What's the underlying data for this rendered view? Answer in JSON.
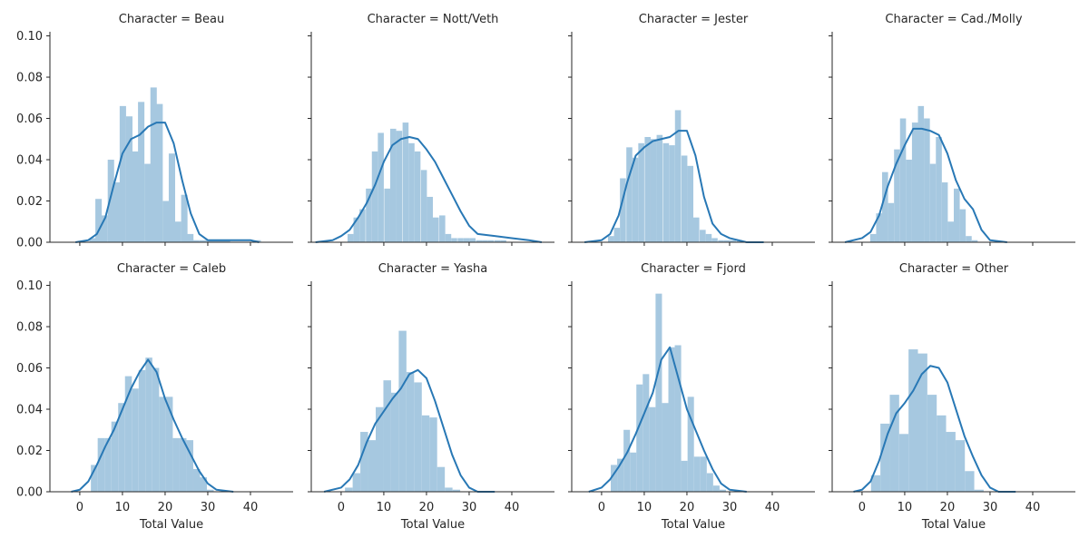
{
  "figure": {
    "xlabel": "Total Value",
    "x_ticks": [
      0,
      10,
      20,
      30,
      40
    ],
    "y_ticks": [
      "0.00",
      "0.02",
      "0.04",
      "0.06",
      "0.08",
      "0.10"
    ],
    "bar_color": "#a6c8e0",
    "kde_color": "#2878b5",
    "axis_color": "#262626"
  },
  "chart_data": [
    {
      "type": "histogram",
      "title": "Character = Beau",
      "xlim": [
        -7,
        50
      ],
      "ylim": [
        0,
        0.102
      ],
      "hist": {
        "x": [
          1.5,
          3.0,
          4.4,
          5.8,
          7.3,
          8.7,
          10.1,
          11.6,
          13.0,
          14.4,
          15.9,
          17.3,
          18.7,
          20.2,
          21.6,
          23.0,
          24.5,
          25.9,
          27.3,
          28.8,
          30.2,
          31.6,
          33.1,
          34.5,
          35.9,
          37.4,
          38.8,
          40.2,
          41.7
        ],
        "density": [
          0.0,
          0.002,
          0.021,
          0.013,
          0.04,
          0.029,
          0.066,
          0.061,
          0.044,
          0.068,
          0.038,
          0.075,
          0.067,
          0.02,
          0.043,
          0.01,
          0.023,
          0.004,
          0.001,
          0.001,
          0.001,
          0.001,
          0.001,
          0.001,
          0.0,
          0.0,
          0.0,
          0.0,
          0.001
        ]
      },
      "kde": {
        "x": [
          -1,
          2,
          4,
          6,
          8,
          10,
          12,
          14,
          16,
          18,
          20,
          22,
          24,
          26,
          28,
          30,
          32,
          36,
          40,
          42
        ],
        "y": [
          0.0,
          0.001,
          0.004,
          0.012,
          0.028,
          0.043,
          0.05,
          0.052,
          0.056,
          0.058,
          0.058,
          0.048,
          0.03,
          0.014,
          0.004,
          0.001,
          0.001,
          0.001,
          0.001,
          0.0
        ]
      }
    },
    {
      "type": "histogram",
      "title": "Character = Nott/Veth",
      "xlim": [
        -7,
        50
      ],
      "ylim": [
        0,
        0.102
      ],
      "hist": {
        "x": [
          2.2,
          3.6,
          5.0,
          6.5,
          7.9,
          9.3,
          10.8,
          12.2,
          13.6,
          15.1,
          16.5,
          17.9,
          19.4,
          20.8,
          22.2,
          23.7,
          25.1,
          26.5,
          28.0,
          29.4,
          30.8,
          32.3,
          33.7,
          35.1,
          36.6,
          38.0,
          39.4,
          40.9,
          42.3,
          43.7,
          45.2,
          46.6
        ],
        "density": [
          0.004,
          0.012,
          0.016,
          0.026,
          0.044,
          0.053,
          0.026,
          0.055,
          0.054,
          0.058,
          0.048,
          0.044,
          0.035,
          0.022,
          0.012,
          0.013,
          0.004,
          0.002,
          0.002,
          0.002,
          0.002,
          0.001,
          0.001,
          0.001,
          0.001,
          0.001,
          0.0,
          0.0,
          0.0,
          0.0,
          0.0,
          0.0
        ]
      },
      "kde": {
        "x": [
          -6,
          -2,
          0,
          2,
          4,
          6,
          8,
          10,
          12,
          14,
          16,
          18,
          20,
          22,
          24,
          26,
          28,
          30,
          32,
          36,
          40,
          44,
          47
        ],
        "y": [
          0.0,
          0.001,
          0.003,
          0.006,
          0.012,
          0.019,
          0.028,
          0.039,
          0.047,
          0.05,
          0.051,
          0.05,
          0.045,
          0.039,
          0.031,
          0.023,
          0.015,
          0.008,
          0.004,
          0.003,
          0.002,
          0.001,
          0.0
        ]
      }
    },
    {
      "type": "histogram",
      "title": "Character = Jester",
      "xlim": [
        -7,
        50
      ],
      "ylim": [
        0,
        0.102
      ],
      "hist": {
        "x": [
          2.2,
          3.6,
          5.0,
          6.5,
          7.9,
          9.3,
          10.8,
          12.2,
          13.6,
          15.1,
          16.5,
          17.9,
          19.4,
          20.8,
          22.2,
          23.7,
          25.1,
          26.5,
          28.0,
          29.4,
          30.8,
          32.3,
          33.7
        ],
        "density": [
          0.003,
          0.007,
          0.031,
          0.046,
          0.041,
          0.048,
          0.051,
          0.05,
          0.052,
          0.048,
          0.047,
          0.064,
          0.042,
          0.037,
          0.012,
          0.006,
          0.004,
          0.002,
          0.001,
          0.001,
          0.001,
          0.001,
          0.0
        ]
      },
      "kde": {
        "x": [
          -4,
          0,
          2,
          4,
          6,
          8,
          10,
          12,
          14,
          16,
          18,
          20,
          22,
          24,
          26,
          28,
          30,
          34,
          38
        ],
        "y": [
          0.0,
          0.001,
          0.004,
          0.013,
          0.029,
          0.042,
          0.046,
          0.049,
          0.05,
          0.051,
          0.054,
          0.054,
          0.042,
          0.022,
          0.009,
          0.004,
          0.002,
          0.0,
          0.0
        ]
      }
    },
    {
      "type": "histogram",
      "title": "Character = Cad./Molly",
      "xlim": [
        -7,
        50
      ],
      "ylim": [
        0,
        0.102
      ],
      "hist": {
        "x": [
          1.2,
          2.6,
          4.0,
          5.4,
          6.8,
          8.2,
          9.6,
          11.0,
          12.4,
          13.8,
          15.2,
          16.6,
          18.0,
          19.4,
          20.8,
          22.2,
          23.6,
          25.0,
          26.4,
          27.8,
          29.2
        ],
        "density": [
          0.0,
          0.004,
          0.014,
          0.034,
          0.019,
          0.045,
          0.06,
          0.04,
          0.058,
          0.066,
          0.06,
          0.038,
          0.051,
          0.029,
          0.01,
          0.026,
          0.016,
          0.003,
          0.001,
          0.0,
          0.0
        ]
      },
      "kde": {
        "x": [
          -4,
          0,
          2,
          4,
          6,
          8,
          10,
          12,
          14,
          16,
          18,
          20,
          22,
          24,
          26,
          28,
          30,
          34
        ],
        "y": [
          0.0,
          0.002,
          0.005,
          0.013,
          0.027,
          0.038,
          0.047,
          0.055,
          0.055,
          0.054,
          0.052,
          0.043,
          0.03,
          0.021,
          0.016,
          0.006,
          0.001,
          0.0
        ]
      }
    },
    {
      "type": "histogram",
      "title": "Character = Caleb",
      "xlim": [
        -7,
        50
      ],
      "ylim": [
        0,
        0.102
      ],
      "hist": {
        "x": [
          3.4,
          5.0,
          6.6,
          8.2,
          9.8,
          11.4,
          13.0,
          14.6,
          16.2,
          17.8,
          19.4,
          21.0,
          22.6,
          24.2,
          25.8,
          27.4,
          29.0,
          30.6
        ],
        "density": [
          0.013,
          0.026,
          0.026,
          0.034,
          0.043,
          0.056,
          0.05,
          0.059,
          0.065,
          0.06,
          0.046,
          0.046,
          0.026,
          0.026,
          0.025,
          0.011,
          0.007,
          0.001
        ]
      },
      "kde": {
        "x": [
          -2,
          0,
          2,
          4,
          6,
          8,
          10,
          12,
          14,
          16,
          18,
          20,
          22,
          24,
          26,
          28,
          30,
          32,
          36
        ],
        "y": [
          0.0,
          0.001,
          0.005,
          0.013,
          0.022,
          0.03,
          0.04,
          0.05,
          0.058,
          0.064,
          0.058,
          0.045,
          0.035,
          0.026,
          0.018,
          0.01,
          0.004,
          0.001,
          0.0
        ]
      }
    },
    {
      "type": "histogram",
      "title": "Character = Yasha",
      "xlim": [
        -7,
        50
      ],
      "ylim": [
        0,
        0.102
      ],
      "hist": {
        "x": [
          1.8,
          3.6,
          5.4,
          7.2,
          9.0,
          10.8,
          12.6,
          14.4,
          16.2,
          18.0,
          19.8,
          21.6,
          23.4,
          25.2,
          27.0,
          28.8
        ],
        "density": [
          0.002,
          0.009,
          0.029,
          0.025,
          0.041,
          0.054,
          0.048,
          0.078,
          0.058,
          0.053,
          0.037,
          0.036,
          0.012,
          0.002,
          0.001,
          0.0
        ]
      },
      "kde": {
        "x": [
          -4,
          0,
          2,
          4,
          6,
          8,
          10,
          12,
          14,
          16,
          18,
          20,
          22,
          24,
          26,
          28,
          30,
          32,
          36
        ],
        "y": [
          0.0,
          0.002,
          0.006,
          0.013,
          0.024,
          0.033,
          0.039,
          0.045,
          0.05,
          0.057,
          0.059,
          0.055,
          0.044,
          0.031,
          0.018,
          0.008,
          0.002,
          0.0,
          0.0
        ]
      }
    },
    {
      "type": "histogram",
      "title": "Character = Fjord",
      "xlim": [
        -7,
        50
      ],
      "ylim": [
        0,
        0.102
      ],
      "hist": {
        "x": [
          2.9,
          4.4,
          5.9,
          7.4,
          8.9,
          10.4,
          11.9,
          13.4,
          14.9,
          16.4,
          17.9,
          19.4,
          20.9,
          22.4,
          23.9,
          25.4,
          26.9,
          28.4,
          29.9
        ],
        "density": [
          0.013,
          0.016,
          0.03,
          0.019,
          0.052,
          0.057,
          0.041,
          0.096,
          0.043,
          0.07,
          0.071,
          0.015,
          0.046,
          0.017,
          0.017,
          0.009,
          0.003,
          0.001,
          0.0
        ]
      },
      "kde": {
        "x": [
          -3,
          0,
          2,
          4,
          6,
          8,
          10,
          12,
          14,
          16,
          18,
          20,
          22,
          24,
          26,
          28,
          30,
          34
        ],
        "y": [
          0.0,
          0.002,
          0.006,
          0.012,
          0.019,
          0.028,
          0.038,
          0.048,
          0.064,
          0.07,
          0.055,
          0.04,
          0.03,
          0.02,
          0.011,
          0.004,
          0.001,
          0.0
        ]
      }
    },
    {
      "type": "histogram",
      "title": "Character = Other",
      "xlim": [
        -7,
        50
      ],
      "ylim": [
        0,
        0.102
      ],
      "hist": {
        "x": [
          3.2,
          5.4,
          7.6,
          9.8,
          12.0,
          14.2,
          16.4,
          18.6,
          20.8,
          23.0,
          25.2,
          27.4
        ],
        "density": [
          0.008,
          0.033,
          0.047,
          0.028,
          0.069,
          0.067,
          0.047,
          0.037,
          0.029,
          0.025,
          0.01,
          0.001
        ]
      },
      "kde": {
        "x": [
          -2,
          0,
          2,
          4,
          6,
          8,
          10,
          12,
          14,
          16,
          18,
          20,
          22,
          24,
          26,
          28,
          30,
          32,
          36
        ],
        "y": [
          0.0,
          0.001,
          0.005,
          0.015,
          0.028,
          0.038,
          0.043,
          0.049,
          0.057,
          0.061,
          0.06,
          0.053,
          0.04,
          0.027,
          0.017,
          0.008,
          0.002,
          0.0,
          0.0
        ]
      }
    }
  ]
}
